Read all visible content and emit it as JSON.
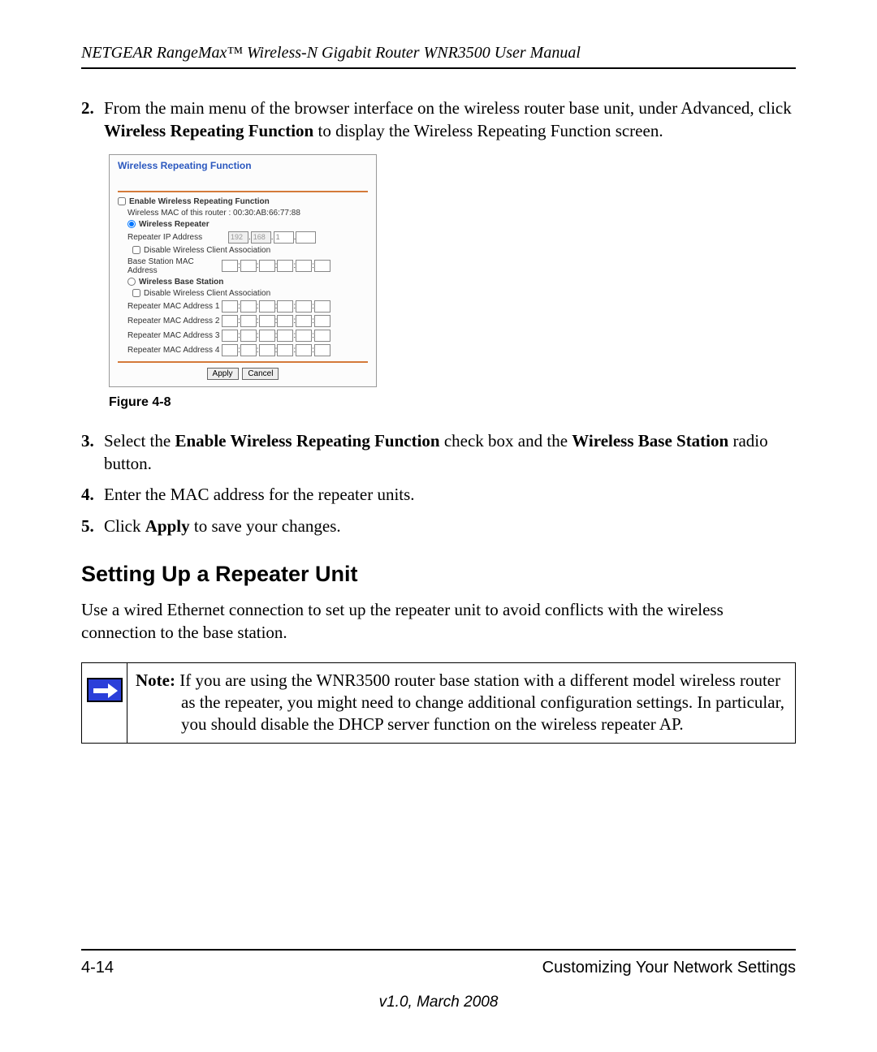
{
  "header": "NETGEAR RangeMax™ Wireless-N Gigabit Router WNR3500 User Manual",
  "steps_a": {
    "num2": "2.",
    "text2_a": "From the main menu of the browser interface on the wireless router base unit, under Advanced, click ",
    "text2_b": "Wireless Repeating Function",
    "text2_c": " to display the Wireless Repeating Function screen."
  },
  "panel": {
    "title": "Wireless Repeating Function",
    "enable_label": "Enable Wireless Repeating Function",
    "mac_info": "Wireless MAC of this router : 00:30:AB:66:77:88",
    "repeater_label": "Wireless Repeater",
    "repeater_ip_label": "Repeater IP Address",
    "ip": [
      "192",
      "168",
      "1",
      ""
    ],
    "disable_assoc": "Disable Wireless Client Association",
    "base_mac_label": "Base Station MAC Address",
    "base_station_label": "Wireless Base Station",
    "rep_mac1": "Repeater MAC Address 1",
    "rep_mac2": "Repeater MAC Address 2",
    "rep_mac3": "Repeater MAC Address 3",
    "rep_mac4": "Repeater MAC Address 4",
    "apply": "Apply",
    "cancel": "Cancel"
  },
  "figure_label": "Figure 4-8",
  "steps_b": {
    "num3": "3.",
    "t3a": "Select the ",
    "t3b": "Enable Wireless Repeating Function",
    "t3c": " check box and the ",
    "t3d": "Wireless Base Station",
    "t3e": " radio button.",
    "num4": "4.",
    "t4": "Enter the MAC address for the repeater units.",
    "num5": "5.",
    "t5a": "Click ",
    "t5b": "Apply",
    "t5c": " to save your changes."
  },
  "section_h": "Setting Up a Repeater Unit",
  "section_p": "Use a wired Ethernet connection to set up the repeater unit to avoid conflicts with the wireless connection to the base station.",
  "note": {
    "label": "Note:",
    "text": " If you are using the WNR3500 router base station with a different model wireless router as the repeater, you might need to change additional configuration settings. In particular, you should disable the DHCP server function on the wireless repeater AP."
  },
  "footer": {
    "page": "4-14",
    "section": "Customizing Your Network Settings",
    "version": "v1.0, March 2008"
  }
}
